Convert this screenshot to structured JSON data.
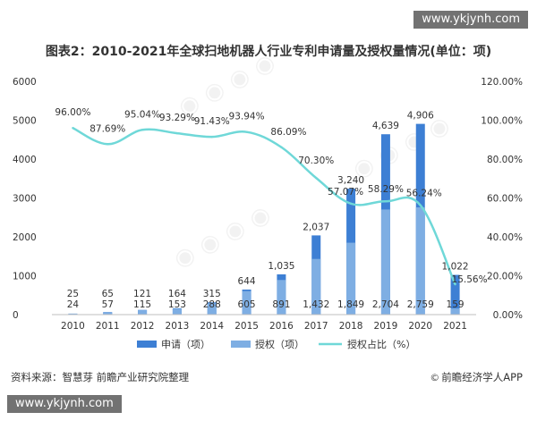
{
  "watermarks": {
    "top": "www.ykjynh.com",
    "bottom": "www.ykjynh.com"
  },
  "title": "图表2：2010-2021年全球扫地机器人行业专利申请量及授权量情况(单位：项)",
  "source": "资料来源：智慧芽 前瞻产业研究院整理",
  "brand": {
    "logo_icon": "copyright-circle-icon",
    "name": "前瞻经济学人APP"
  },
  "chart_data": {
    "type": "bar",
    "categories": [
      "2010",
      "2011",
      "2012",
      "2013",
      "2014",
      "2015",
      "2016",
      "2017",
      "2018",
      "2019",
      "2020",
      "2021"
    ],
    "series": [
      {
        "name": "申请（项）",
        "type": "bar",
        "color": "#3d7fd4",
        "values": [
          25,
          65,
          121,
          164,
          315,
          644,
          1035,
          2037,
          3240,
          4639,
          4906,
          1022
        ],
        "labels": [
          "25",
          "65",
          "121",
          "164",
          "315",
          "644",
          "1,035",
          "2,037",
          "3,240",
          "4,639",
          "4,906",
          "1,022"
        ]
      },
      {
        "name": "授权（项）",
        "type": "bar",
        "color": "#7eaee3",
        "values": [
          24,
          57,
          115,
          153,
          288,
          605,
          891,
          1432,
          1849,
          2704,
          2759,
          159
        ],
        "labels": [
          "24",
          "57",
          "115",
          "153",
          "288",
          "605",
          "891",
          "1,432",
          "1,849",
          "2,704",
          "2,759",
          "159"
        ]
      },
      {
        "name": "授权占比（%）",
        "type": "line",
        "axis": "right",
        "color": "#6fd8d8",
        "values": [
          96.0,
          87.69,
          95.04,
          93.29,
          91.43,
          93.94,
          86.09,
          70.3,
          57.07,
          58.29,
          56.24,
          15.56
        ],
        "labels": [
          "96.00%",
          "87.69%",
          "95.04%",
          "93.29%",
          "91.43%",
          "93.94%",
          "86.09%",
          "70.30%",
          "57.07%",
          "58.29%",
          "56.24%",
          "15.56%"
        ]
      }
    ],
    "left_axis": {
      "ylim": [
        0,
        6000
      ],
      "ticks": [
        "0",
        "1000",
        "2000",
        "3000",
        "4000",
        "5000",
        "6000"
      ]
    },
    "right_axis": {
      "ylim": [
        0,
        120
      ],
      "ticks": [
        "0.00%",
        "20.00%",
        "40.00%",
        "60.00%",
        "80.00%",
        "100.00%",
        "120.00%"
      ]
    },
    "legend_placement": "bottom",
    "grid": false
  }
}
